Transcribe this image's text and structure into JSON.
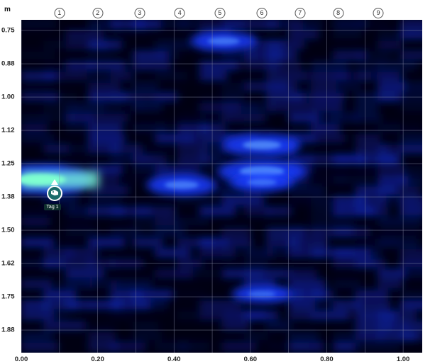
{
  "chart_data": {
    "type": "heatmap",
    "y_unit": "m",
    "x_ticks": [
      "0.00",
      "0.20",
      "0.40",
      "0.60",
      "0.80",
      "1.00"
    ],
    "x_tick_values": [
      0.0,
      0.2,
      0.4,
      0.6,
      0.8,
      1.0
    ],
    "y_ticks": [
      "0.75",
      "0.88",
      "1.00",
      "1.12",
      "1.25",
      "1.38",
      "1.50",
      "1.62",
      "1.75",
      "1.88"
    ],
    "y_tick_values": [
      0.75,
      0.875,
      1.0,
      1.125,
      1.25,
      1.375,
      1.5,
      1.625,
      1.75,
      1.875
    ],
    "xlim": [
      0.0,
      1.05
    ],
    "ylim": [
      0.71,
      1.96
    ],
    "channels": [
      "1",
      "2",
      "3",
      "4",
      "5",
      "6",
      "7",
      "8",
      "9"
    ],
    "channel_x": [
      0.1,
      0.2,
      0.31,
      0.415,
      0.52,
      0.63,
      0.73,
      0.83,
      0.935
    ],
    "grid": true,
    "colors": {
      "low": "#000012",
      "mid": "#1a3cff",
      "high": "#7fffd0"
    },
    "hotspots": [
      {
        "x": 0.05,
        "y": 1.31,
        "value": 1.0
      },
      {
        "x": 0.63,
        "y": 1.28,
        "value": 0.85
      },
      {
        "x": 0.63,
        "y": 1.18,
        "value": 0.7
      },
      {
        "x": 0.42,
        "y": 1.33,
        "value": 0.6
      },
      {
        "x": 0.53,
        "y": 0.79,
        "value": 0.55
      },
      {
        "x": 0.63,
        "y": 1.32,
        "value": 0.5
      },
      {
        "x": 0.63,
        "y": 1.74,
        "value": 0.45
      }
    ]
  },
  "tag": {
    "label": "Tag 1",
    "x": 0.09,
    "y": 1.365,
    "icon": "tag-icon"
  }
}
